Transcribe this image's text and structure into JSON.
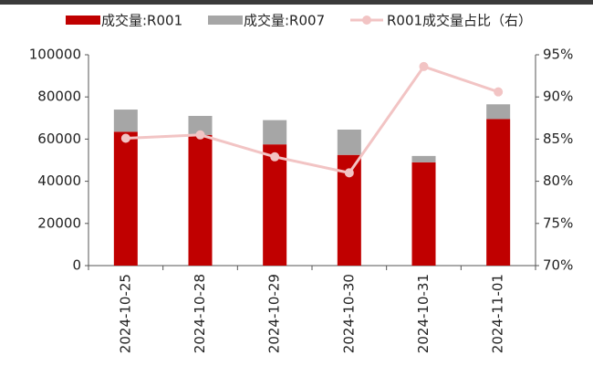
{
  "chart_data": {
    "type": "bar",
    "categories": [
      "2024-10-25",
      "2024-10-28",
      "2024-10-29",
      "2024-10-30",
      "2024-10-31",
      "2024-11-01"
    ],
    "stacked": true,
    "series": [
      {
        "name": "成交量:R001",
        "color": "#c00000",
        "values": [
          63500,
          62000,
          57500,
          52500,
          49000,
          69500
        ]
      },
      {
        "name": "成交量:R007",
        "color": "#a6a6a6",
        "values": [
          10500,
          9000,
          11500,
          12000,
          3000,
          7000
        ]
      },
      {
        "name": "R001成交量占比（右）",
        "type": "line",
        "axis": "y2",
        "color": "#f2c4c4",
        "values": [
          85.1,
          85.5,
          82.9,
          81.0,
          93.6,
          90.6
        ]
      }
    ],
    "ylim": [
      0,
      100000
    ],
    "yticks": [
      0,
      20000,
      40000,
      60000,
      80000,
      100000
    ],
    "y2lim": [
      70,
      95
    ],
    "y2ticks": [
      {
        "value": 70,
        "label": "70%"
      },
      {
        "value": 75,
        "label": "75%"
      },
      {
        "value": 80,
        "label": "80%"
      },
      {
        "value": 85,
        "label": "85%"
      },
      {
        "value": 90,
        "label": "90%"
      },
      {
        "value": 95,
        "label": "95%"
      }
    ],
    "legend": "top"
  }
}
